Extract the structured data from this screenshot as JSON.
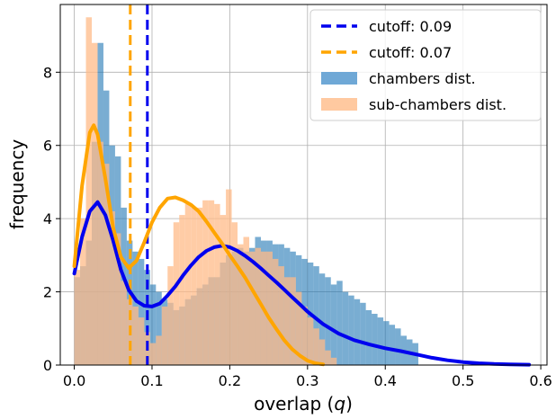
{
  "chart_data": {
    "type": "histogram",
    "xlabel": "overlap (",
    "xlabel_var": "q",
    "xlabel_close": ")",
    "ylabel": "frequency",
    "xlim": [
      -0.018,
      0.608
    ],
    "ylim": [
      0,
      9.85
    ],
    "xticks": [
      0.0,
      0.1,
      0.2,
      0.3,
      0.4,
      0.5,
      0.6
    ],
    "xtick_labels": [
      "0.0",
      "0.1",
      "0.2",
      "0.3",
      "0.4",
      "0.5",
      "0.6"
    ],
    "yticks": [
      0,
      2,
      4,
      6,
      8
    ],
    "ytick_labels": [
      "0",
      "2",
      "4",
      "6",
      "8"
    ],
    "grid": true,
    "legend_position": "top-right",
    "bin_width": 0.0075,
    "bin_start": 0.0,
    "series": [
      {
        "name": "chambers dist.",
        "kind": "histogram",
        "color": "#1f77b4",
        "alpha": 0.6,
        "values": [
          2.4,
          2.7,
          3.4,
          6.1,
          8.8,
          7.5,
          6.0,
          5.7,
          4.3,
          3.4,
          3.1,
          2.9,
          2.6,
          2.2,
          2.0,
          1.8,
          1.7,
          1.5,
          1.6,
          1.8,
          1.9,
          2.1,
          2.2,
          2.4,
          2.4,
          2.8,
          3.0,
          3.1,
          3.2,
          3.1,
          3.2,
          3.5,
          3.4,
          3.4,
          3.3,
          3.3,
          3.2,
          3.1,
          3.0,
          2.9,
          2.8,
          2.7,
          2.5,
          2.4,
          2.2,
          2.3,
          2.0,
          1.9,
          1.8,
          1.7,
          1.5,
          1.4,
          1.3,
          1.2,
          1.1,
          1.0,
          0.8,
          0.7,
          0.6
        ]
      },
      {
        "name": "sub-chambers dist.",
        "kind": "histogram",
        "color": "#ffbb88",
        "alpha": 0.75,
        "values": [
          2.6,
          4.0,
          9.5,
          8.8,
          6.1,
          5.5,
          4.2,
          3.6,
          2.3,
          1.8,
          1.6,
          1.3,
          0.9,
          0.6,
          0.8,
          1.6,
          2.7,
          3.9,
          4.1,
          4.4,
          4.3,
          4.3,
          4.5,
          4.5,
          4.4,
          4.1,
          4.8,
          3.9,
          3.3,
          3.5,
          3.1,
          3.2,
          3.1,
          3.1,
          2.9,
          2.7,
          2.4,
          2.4,
          2.0,
          1.6,
          1.3,
          1.0,
          0.7,
          0.4,
          0.2
        ]
      },
      {
        "name": "",
        "kind": "kde",
        "color": "#0000ee",
        "x": [
          0.0,
          0.01,
          0.02,
          0.03,
          0.04,
          0.05,
          0.06,
          0.07,
          0.08,
          0.09,
          0.1,
          0.11,
          0.12,
          0.13,
          0.14,
          0.15,
          0.16,
          0.17,
          0.18,
          0.19,
          0.2,
          0.21,
          0.22,
          0.23,
          0.24,
          0.25,
          0.26,
          0.27,
          0.28,
          0.29,
          0.3,
          0.32,
          0.34,
          0.36,
          0.38,
          0.4,
          0.42,
          0.44,
          0.46,
          0.48,
          0.5,
          0.52,
          0.54,
          0.56,
          0.585
        ],
        "y": [
          2.5,
          3.5,
          4.2,
          4.45,
          4.1,
          3.4,
          2.6,
          2.05,
          1.75,
          1.62,
          1.6,
          1.68,
          1.9,
          2.15,
          2.45,
          2.72,
          2.95,
          3.12,
          3.22,
          3.26,
          3.22,
          3.12,
          2.98,
          2.82,
          2.64,
          2.45,
          2.26,
          2.06,
          1.86,
          1.66,
          1.46,
          1.12,
          0.86,
          0.68,
          0.56,
          0.46,
          0.38,
          0.29,
          0.2,
          0.13,
          0.08,
          0.05,
          0.03,
          0.02,
          0.01
        ]
      },
      {
        "name": "",
        "kind": "kde",
        "color": "#ffa500",
        "x": [
          0.0,
          0.01,
          0.02,
          0.025,
          0.03,
          0.04,
          0.05,
          0.06,
          0.07,
          0.08,
          0.09,
          0.1,
          0.11,
          0.12,
          0.13,
          0.14,
          0.15,
          0.16,
          0.17,
          0.18,
          0.19,
          0.2,
          0.21,
          0.22,
          0.23,
          0.24,
          0.25,
          0.26,
          0.27,
          0.28,
          0.29,
          0.3,
          0.31,
          0.32
        ],
        "y": [
          2.7,
          4.9,
          6.35,
          6.55,
          6.3,
          5.1,
          3.75,
          2.95,
          2.65,
          2.85,
          3.35,
          3.9,
          4.3,
          4.55,
          4.58,
          4.5,
          4.38,
          4.2,
          3.92,
          3.62,
          3.32,
          3.0,
          2.7,
          2.38,
          2.02,
          1.66,
          1.3,
          0.98,
          0.68,
          0.44,
          0.26,
          0.12,
          0.05,
          0.02
        ]
      }
    ],
    "vlines": [
      {
        "x": 0.094,
        "color": "#0000ee",
        "label": "cutoff: 0.09"
      },
      {
        "x": 0.072,
        "color": "#ffa500",
        "label": "cutoff: 0.07"
      }
    ],
    "legend": [
      {
        "label": "cutoff: 0.09",
        "kind": "dashed",
        "color": "#0000ee"
      },
      {
        "label": "cutoff: 0.07",
        "kind": "dashed",
        "color": "#ffa500"
      },
      {
        "label": "chambers dist.",
        "kind": "patch",
        "color": "#6fa8d6"
      },
      {
        "label": "sub-chambers dist.",
        "kind": "patch",
        "color": "#ffc9a0"
      }
    ]
  }
}
